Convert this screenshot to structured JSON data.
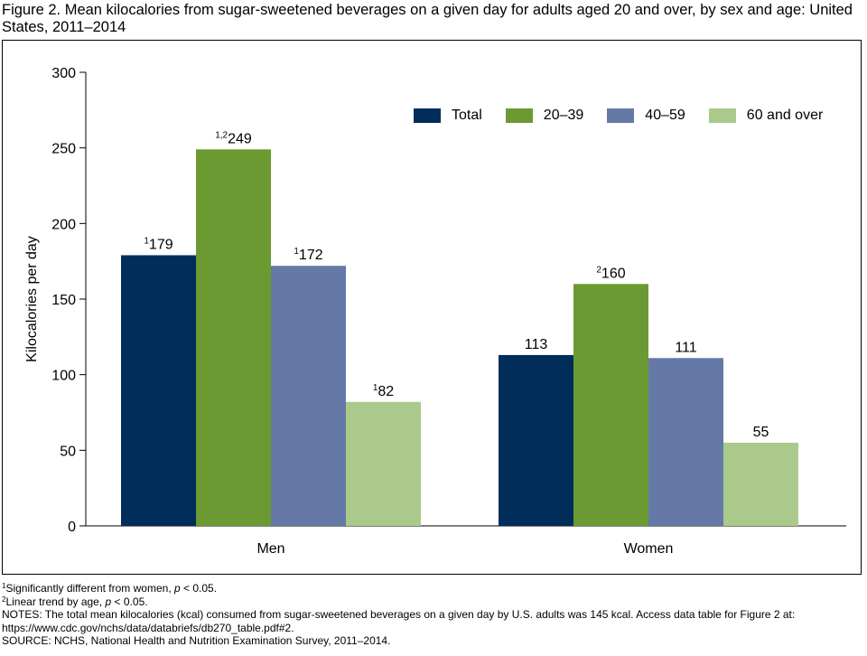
{
  "title": "Figure 2. Mean kilocalories from sugar-sweetened beverages on a given day for adults aged 20 and over, by sex and age: United States, 2011–2014",
  "chart_data": {
    "type": "bar",
    "title": "Figure 2. Mean kilocalories from sugar-sweetened beverages on a given day for adults aged 20 and over, by sex and age: United States, 2011–2014",
    "categories": [
      "Men",
      "Women"
    ],
    "series": [
      {
        "name": "Total",
        "color": "#002d5a",
        "values": [
          179,
          113
        ],
        "markers": [
          "1",
          ""
        ]
      },
      {
        "name": "20–39",
        "color": "#6b9a32",
        "values": [
          249,
          160
        ],
        "markers": [
          "1,2",
          "2"
        ]
      },
      {
        "name": "40–59",
        "color": "#6579a6",
        "values": [
          172,
          111
        ],
        "markers": [
          "1",
          ""
        ]
      },
      {
        "name": "60 and over",
        "color": "#abc98a",
        "values": [
          82,
          55
        ],
        "markers": [
          "1",
          ""
        ]
      }
    ],
    "xlabel": "",
    "ylabel": "Kilocalories per day",
    "ylim": [
      0,
      300
    ],
    "yticks": [
      0,
      50,
      100,
      150,
      200,
      250,
      300
    ],
    "grid": false,
    "legend": "top-right"
  },
  "footnotes": {
    "note1_marker": "1",
    "note1_text": "Significantly different from women, ",
    "note1_p": "p",
    "note1_tail": " < 0.05.",
    "note2_marker": "2",
    "note2_text": "Linear trend by age, ",
    "note2_p": "p",
    "note2_tail": " < 0.05.",
    "notes": "NOTES: The total mean kilocalories (kcal) consumed from sugar-sweetened beverages on a given day by U.S. adults was 145 kcal. Access data table for Figure 2 at: https://www.cdc.gov/nchs/data/databriefs/db270_table.pdf#2.",
    "source": "SOURCE: NCHS, National Health and Nutrition Examination Survey, 2011–2014."
  }
}
